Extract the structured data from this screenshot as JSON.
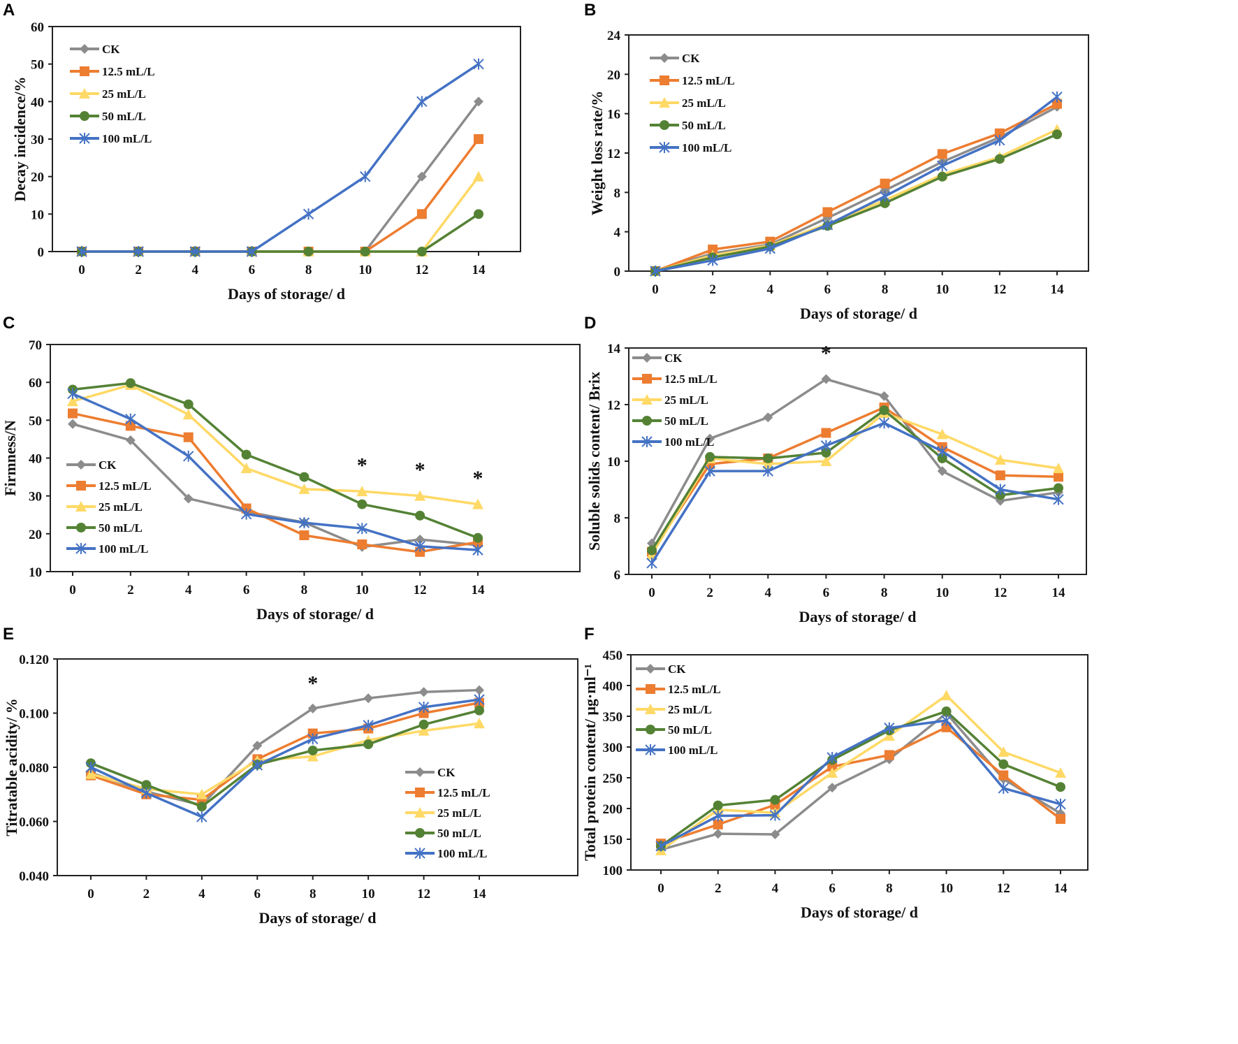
{
  "series_styles": [
    {
      "name": "CK",
      "color": "#8c8c8c",
      "marker": "diamond"
    },
    {
      "name": "12.5 mL/L",
      "color": "#ed7d31",
      "marker": "square"
    },
    {
      "name": "25 mL/L",
      "color": "#ffd966",
      "marker": "triangle"
    },
    {
      "name": "50 mL/L",
      "color": "#548235",
      "marker": "circle"
    },
    {
      "name": "100 mL/L",
      "color": "#4472c4",
      "marker": "asterisk"
    }
  ],
  "chart_data": [
    {
      "panel": "A",
      "type": "line",
      "xlabel": "Days of storage/ d",
      "ylabel": "Decay incidence/%",
      "ylim": [
        0,
        60
      ],
      "ystep": 10,
      "ydecimals": 0,
      "xlim": [
        0,
        14
      ],
      "x": [
        0,
        2,
        4,
        6,
        8,
        10,
        12,
        14
      ],
      "legend": "top-left",
      "asterisks": [],
      "series": [
        {
          "name": "CK",
          "values": [
            0,
            0,
            0,
            0,
            0,
            0,
            20,
            40
          ]
        },
        {
          "name": "12.5 mL/L",
          "values": [
            0,
            0,
            0,
            0,
            0,
            0,
            10,
            30
          ]
        },
        {
          "name": "25 mL/L",
          "values": [
            0,
            0,
            0,
            0,
            0,
            0,
            0,
            20
          ]
        },
        {
          "name": "50 mL/L",
          "values": [
            0,
            0,
            0,
            0,
            0,
            0,
            0,
            10
          ]
        },
        {
          "name": "100 mL/L",
          "values": [
            0,
            0,
            0,
            0,
            10,
            20,
            40,
            50
          ]
        }
      ]
    },
    {
      "panel": "B",
      "type": "line",
      "xlabel": "Days of storage/ d",
      "ylabel": "Weight loss rate/%",
      "ylim": [
        0,
        24
      ],
      "ystep": 4,
      "ydecimals": 0,
      "xlim": [
        0,
        14
      ],
      "x": [
        0,
        2,
        4,
        6,
        8,
        10,
        12,
        14
      ],
      "legend": "top-left",
      "asterisks": [],
      "series": [
        {
          "name": "CK",
          "values": [
            0,
            1.8,
            2.7,
            5.4,
            8.2,
            11.1,
            13.6,
            16.7
          ]
        },
        {
          "name": "12.5 mL/L",
          "values": [
            0,
            2.2,
            3.0,
            6.0,
            8.9,
            11.9,
            14.0,
            17.0
          ]
        },
        {
          "name": "25 mL/L",
          "values": [
            0,
            1.6,
            2.6,
            4.8,
            7.2,
            9.8,
            11.6,
            14.4
          ]
        },
        {
          "name": "50 mL/L",
          "values": [
            0,
            1.4,
            2.5,
            4.6,
            6.9,
            9.6,
            11.4,
            13.9
          ]
        },
        {
          "name": "100 mL/L",
          "values": [
            0,
            1.1,
            2.3,
            4.7,
            7.6,
            10.7,
            13.3,
            17.7
          ]
        }
      ]
    },
    {
      "panel": "C",
      "type": "line",
      "xlabel": "Days of storage/ d",
      "ylabel": "Firmness/N",
      "ylim": [
        10,
        70
      ],
      "ystep": 10,
      "ydecimals": 0,
      "xlim": [
        0,
        14
      ],
      "x": [
        0,
        2,
        4,
        6,
        8,
        10,
        12,
        14
      ],
      "legend": "bottom-left",
      "asterisks": [
        10,
        12,
        14
      ],
      "series": [
        {
          "name": "CK",
          "values": [
            49,
            44.7,
            29.3,
            25.8,
            23,
            16.5,
            18.5,
            17
          ]
        },
        {
          "name": "12.5 mL/L",
          "values": [
            51.8,
            48.5,
            45.5,
            26.7,
            19.6,
            17.2,
            15.2,
            17.8
          ]
        },
        {
          "name": "25 mL/L",
          "values": [
            55,
            59.3,
            51.5,
            37.3,
            31.8,
            31.2,
            30,
            27.8
          ]
        },
        {
          "name": "50 mL/L",
          "values": [
            58.1,
            59.8,
            54.2,
            40.9,
            35,
            27.8,
            24.8,
            18.9
          ]
        },
        {
          "name": "100 mL/L",
          "values": [
            57,
            50.3,
            40.5,
            25.2,
            22.9,
            21.4,
            16.7,
            15.7
          ]
        }
      ]
    },
    {
      "panel": "D",
      "type": "line",
      "xlabel": "Days of storage/ d",
      "ylabel": "Soluble solids content/ Brix",
      "ylim": [
        6,
        14
      ],
      "ystep": 2,
      "ydecimals": 0,
      "xlim": [
        0,
        14
      ],
      "x": [
        0,
        2,
        4,
        6,
        8,
        10,
        12,
        14
      ],
      "legend": "top-left",
      "asterisks": [
        6
      ],
      "series": [
        {
          "name": "CK",
          "values": [
            7.1,
            10.8,
            11.55,
            12.9,
            12.3,
            9.65,
            8.6,
            8.9
          ]
        },
        {
          "name": "12.5 mL/L",
          "values": [
            6.8,
            9.9,
            10.1,
            11.0,
            11.9,
            10.5,
            9.5,
            9.45
          ]
        },
        {
          "name": "25 mL/L",
          "values": [
            6.7,
            10.1,
            9.9,
            10.0,
            11.7,
            10.95,
            10.05,
            9.75
          ]
        },
        {
          "name": "50 mL/L",
          "values": [
            6.85,
            10.15,
            10.1,
            10.3,
            11.8,
            10.1,
            8.8,
            9.05
          ]
        },
        {
          "name": "100 mL/L",
          "values": [
            6.4,
            9.65,
            9.65,
            10.55,
            11.35,
            10.35,
            9.0,
            8.65
          ]
        }
      ]
    },
    {
      "panel": "E",
      "type": "line",
      "xlabel": "Days of storage/ d",
      "ylabel": "Titratable acidity/ %",
      "ylim": [
        0.04,
        0.12
      ],
      "ystep": 0.02,
      "ydecimals": 3,
      "xlim": [
        0,
        14
      ],
      "x": [
        0,
        2,
        4,
        6,
        8,
        10,
        12,
        14
      ],
      "legend": "bottom-right",
      "asterisks": [
        8
      ],
      "series": [
        {
          "name": "CK",
          "values": [
            0.078,
            0.071,
            0.066,
            0.088,
            0.1017,
            0.1055,
            0.1078,
            0.1085
          ]
        },
        {
          "name": "12.5 mL/L",
          "values": [
            0.077,
            0.07,
            0.068,
            0.083,
            0.0925,
            0.0943,
            0.1,
            0.1038
          ]
        },
        {
          "name": "25 mL/L",
          "values": [
            0.0775,
            0.072,
            0.07,
            0.0825,
            0.084,
            0.09,
            0.0935,
            0.0962
          ]
        },
        {
          "name": "50 mL/L",
          "values": [
            0.0815,
            0.0735,
            0.0655,
            0.081,
            0.0862,
            0.0885,
            0.0958,
            0.101
          ]
        },
        {
          "name": "100 mL/L",
          "values": [
            0.08,
            0.0705,
            0.0617,
            0.0808,
            0.0905,
            0.0955,
            0.1022,
            0.105
          ]
        }
      ]
    },
    {
      "panel": "F",
      "type": "line",
      "xlabel": "Days of storage/ d",
      "ylabel": "Total protein content/ μg·ml⁻¹",
      "ylim": [
        100,
        450
      ],
      "ystep": 50,
      "ydecimals": 0,
      "xlim": [
        0,
        14
      ],
      "x": [
        0,
        2,
        4,
        6,
        8,
        10,
        12,
        14
      ],
      "legend": "top-left",
      "asterisks": [],
      "series": [
        {
          "name": "CK",
          "values": [
            133,
            159,
            158,
            234,
            280,
            355,
            248,
            192
          ]
        },
        {
          "name": "12.5 mL/L",
          "values": [
            143,
            174,
            206,
            268,
            287,
            332,
            254,
            183
          ]
        },
        {
          "name": "25 mL/L",
          "values": [
            132,
            198,
            193,
            258,
            318,
            384,
            292,
            258
          ]
        },
        {
          "name": "50 mL/L",
          "values": [
            139,
            205,
            214,
            279,
            327,
            358,
            272,
            235
          ]
        },
        {
          "name": "100 mL/L",
          "values": [
            139,
            188,
            189,
            283,
            331,
            343,
            233,
            207
          ]
        }
      ]
    }
  ],
  "asterisk_symbol": "*"
}
